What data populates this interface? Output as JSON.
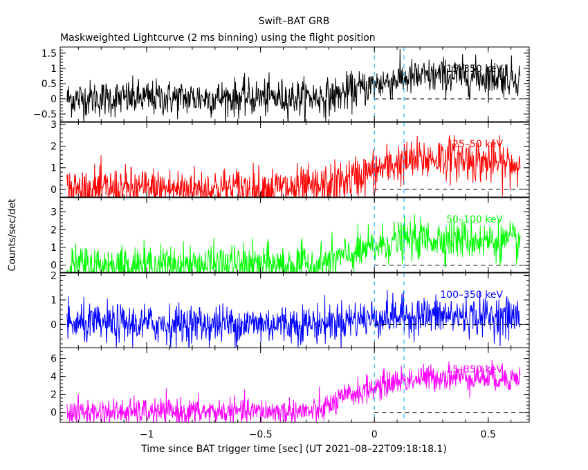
{
  "chart_data": {
    "type": "line",
    "title": "Swift–BAT GRB",
    "subtitle": "Maskweighted Lightcurve (2 ms binning) using the flight position",
    "xlabel": "Time since BAT trigger time [sec] (UT 2021–08–22T09:18:18.1)",
    "ylabel": "Counts/sec/det",
    "xlim": [
      -1.38,
      0.68
    ],
    "x_ticks": [
      -1,
      -0.5,
      0,
      0.5
    ],
    "x_tick_labels": [
      "−1",
      "−0.5",
      "0",
      "0.5"
    ],
    "markers": {
      "vertical_dashed_x": [
        0,
        0.13
      ],
      "color": "#00a0ff"
    },
    "panels": [
      {
        "band_label": "15–350 keV",
        "color": "#000000",
        "ylim": [
          -0.75,
          1.7
        ],
        "y_ticks": [
          -0.5,
          0,
          0.5,
          1,
          1.5
        ],
        "y_tick_labels": [
          "−0.5",
          "0",
          "0.5",
          "1",
          "1.5"
        ],
        "profile_t": [
          -1.35,
          -0.2,
          -0.05,
          0.1,
          0.3,
          0.64
        ],
        "profile_level": [
          0,
          0.05,
          0.35,
          0.65,
          0.75,
          0.7
        ],
        "noise_sigma": 0.3
      },
      {
        "band_label": "25–50 keV",
        "color": "#ff0000",
        "ylim": [
          -0.35,
          3.1
        ],
        "y_ticks": [
          0,
          1,
          2,
          3
        ],
        "y_tick_labels": [
          "0",
          "1",
          "2",
          "3"
        ],
        "profile_t": [
          -1.35,
          -0.25,
          -0.1,
          0.1,
          0.3,
          0.64
        ],
        "profile_level": [
          0,
          0.05,
          0.5,
          1.2,
          1.5,
          1.1
        ],
        "noise_sigma": 0.5
      },
      {
        "band_label": "50–100 keV",
        "color": "#00ff00",
        "ylim": [
          -0.4,
          3.8
        ],
        "y_ticks": [
          0,
          1,
          2,
          3
        ],
        "y_tick_labels": [
          "0",
          "1",
          "2",
          "3"
        ],
        "profile_t": [
          -1.35,
          -0.25,
          -0.1,
          0.1,
          0.3,
          0.64
        ],
        "profile_level": [
          0,
          0.05,
          0.6,
          1.4,
          1.5,
          1.3
        ],
        "noise_sigma": 0.55
      },
      {
        "band_label": "100–350 keV",
        "color": "#0000ff",
        "ylim": [
          -0.95,
          2.1
        ],
        "y_ticks": [
          0,
          1,
          2
        ],
        "y_tick_labels": [
          "0",
          "1",
          "2"
        ],
        "profile_t": [
          -1.35,
          -0.25,
          -0.1,
          0.1,
          0.3,
          0.64
        ],
        "profile_level": [
          0,
          0.03,
          0.2,
          0.35,
          0.35,
          0.3
        ],
        "noise_sigma": 0.4
      },
      {
        "band_label": "15–350 keV",
        "color": "#ff00ff",
        "ylim": [
          -1.1,
          7.2
        ],
        "y_ticks": [
          0,
          2,
          4,
          6
        ],
        "y_tick_labels": [
          "0",
          "2",
          "4",
          "6"
        ],
        "profile_t": [
          -1.35,
          -0.25,
          -0.1,
          0.1,
          0.3,
          0.64
        ],
        "profile_level": [
          0,
          0.1,
          2.0,
          3.5,
          4.0,
          3.8
        ],
        "noise_sigma": 0.75
      }
    ]
  }
}
